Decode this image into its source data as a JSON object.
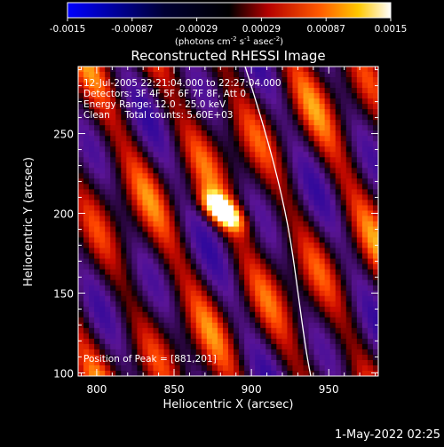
{
  "colorbar": {
    "ticks": [
      "-0.0015",
      "-0.00087",
      "-0.00029",
      "0.00029",
      "0.00087",
      "0.0015"
    ],
    "unit_label_main": "(photons cm",
    "unit_sup1": "-2",
    "unit_mid": " s",
    "unit_sup2": "-1",
    "unit_tail": " asec",
    "unit_sup3": "-2",
    "unit_close": ")",
    "range": [
      -0.0015,
      0.0015
    ],
    "colors": [
      "#0000ff",
      "#000000",
      "#d40000",
      "#ff8c00",
      "#ffff60",
      "#ffffff"
    ]
  },
  "chart_data": {
    "type": "heatmap",
    "title": "Reconstructed RHESSI Image",
    "xlabel": "Heliocentric X (arcsec)",
    "ylabel": "Heliocentric Y (arcsec)",
    "xlim": [
      788,
      982
    ],
    "ylim": [
      98,
      292
    ],
    "x_ticks": [
      "800",
      "850",
      "900",
      "950"
    ],
    "y_ticks": [
      "100",
      "150",
      "200",
      "250"
    ],
    "x_tick_values": [
      800,
      850,
      900,
      950
    ],
    "y_tick_values": [
      100,
      150,
      200,
      250
    ],
    "info_lines": [
      "12-Jul-2005 22:21:04.000 to 22:27:04.000",
      "Detectors: 3F 4F 5F 6F 7F 8F, Att 0",
      "Energy Range: 12.0 - 25.0 keV",
      "Clean     Total counts: 5.60E+03"
    ],
    "peak_label": "Position of Peak = [881,201]",
    "peak": [
      881,
      201
    ]
  },
  "footer": {
    "date": "1-May-2022 02:25"
  }
}
